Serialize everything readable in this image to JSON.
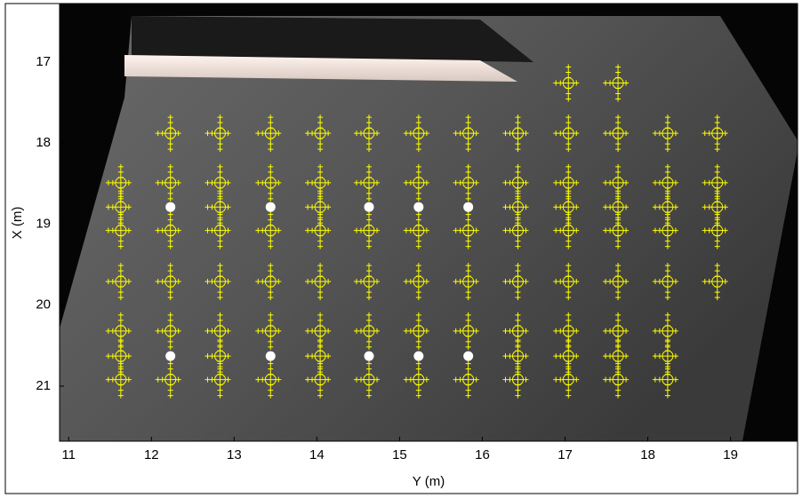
{
  "chart_data": {
    "type": "scatter",
    "xlabel": "Y (m)",
    "ylabel": "X (m)",
    "xlim": [
      10.89,
      19.81
    ],
    "ylim": [
      16.29,
      21.68
    ],
    "y_inverted": true,
    "xticks": [
      11,
      12,
      13,
      14,
      15,
      16,
      17,
      18,
      19
    ],
    "yticks": [
      17,
      18,
      19,
      20,
      21
    ],
    "circle_color": "#ffff00",
    "dot_color": "#ffffff",
    "circles": [
      {
        "y": 17.26,
        "x": [
          17.04,
          17.64
        ]
      },
      {
        "y": 17.88,
        "x": [
          12.23,
          12.83,
          13.44,
          14.04,
          14.63,
          15.23,
          15.83,
          16.43,
          17.04,
          17.64,
          18.24,
          18.84
        ]
      },
      {
        "y": 18.49,
        "x": [
          11.63,
          12.23,
          12.83,
          13.44,
          14.04,
          14.63,
          15.23,
          15.83,
          16.43,
          17.04,
          17.64,
          18.24,
          18.84
        ]
      },
      {
        "y": 18.79,
        "x": [
          11.63,
          12.83,
          14.04,
          16.43,
          17.04,
          17.64,
          18.24,
          18.84
        ]
      },
      {
        "y": 19.08,
        "x": [
          11.63,
          12.23,
          12.83,
          13.44,
          14.04,
          14.63,
          15.23,
          15.83,
          16.43,
          17.04,
          17.64,
          18.24,
          18.84
        ]
      },
      {
        "y": 19.71,
        "x": [
          11.63,
          12.23,
          12.83,
          13.44,
          14.04,
          14.63,
          15.23,
          15.83,
          16.43,
          17.04,
          17.64,
          18.24,
          18.84
        ]
      },
      {
        "y": 20.32,
        "x": [
          11.63,
          12.23,
          12.83,
          13.44,
          14.04,
          14.63,
          15.23,
          15.83,
          16.43,
          17.04,
          17.64,
          18.24
        ]
      },
      {
        "y": 20.63,
        "x": [
          11.63,
          12.83,
          14.04,
          16.43,
          17.04,
          17.64,
          18.24
        ]
      },
      {
        "y": 20.92,
        "x": [
          11.63,
          12.23,
          12.83,
          13.44,
          14.04,
          14.63,
          15.23,
          15.83,
          16.43,
          17.04,
          17.64,
          18.24
        ]
      }
    ],
    "dots": [
      {
        "y": 18.79,
        "x": [
          12.23,
          13.44,
          14.63,
          15.23,
          15.83
        ]
      },
      {
        "y": 20.63,
        "x": [
          12.23,
          13.44,
          14.63,
          15.23,
          15.83
        ]
      }
    ]
  }
}
